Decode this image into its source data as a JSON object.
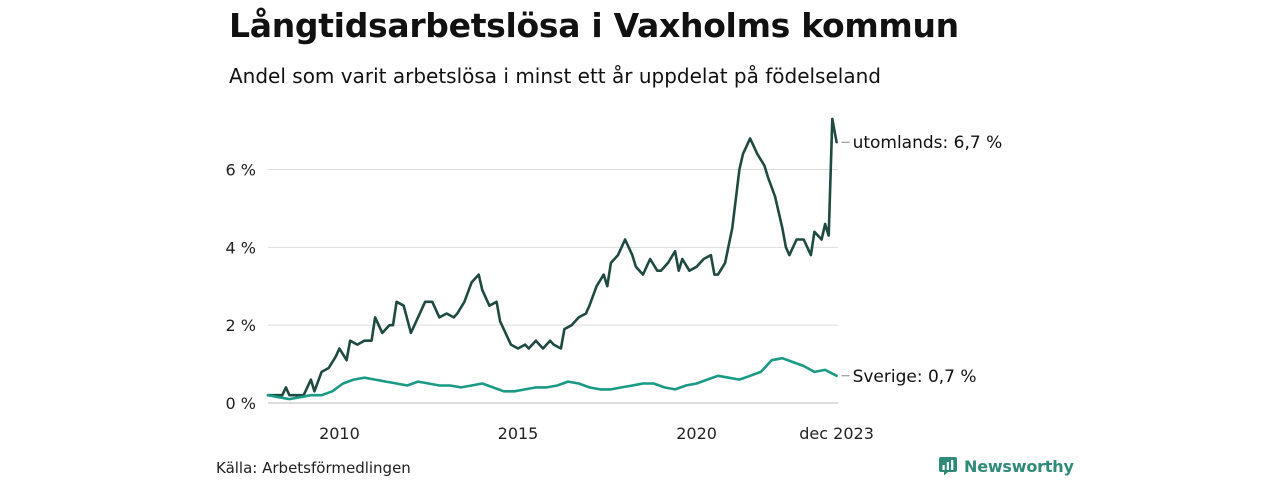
{
  "title": "Långtidsarbetslösa i Vaxholms kommun",
  "subtitle": "Andel som varit arbetslösa i minst ett år uppdelat på födelseland",
  "source": "Källa: Arbetsförmedlingen",
  "brand": {
    "name": "Newsworthy",
    "icon": "newsworthy-logo-icon",
    "color": "#2f8a7a"
  },
  "chart_data": {
    "type": "line",
    "title": "Långtidsarbetslösa i Vaxholms kommun",
    "subtitle": "Andel som varit arbetslösa i minst ett år uppdelat på födelseland",
    "xlabel": "",
    "ylabel": "",
    "xlim": [
      2008.0,
      2023.96
    ],
    "ylim": [
      0,
      7.4
    ],
    "grid": true,
    "yticks": [
      0,
      2,
      4,
      6
    ],
    "ytick_labels": [
      "0 %",
      "2 %",
      "4 %",
      "6 %"
    ],
    "xticks": [
      2010,
      2015,
      2020,
      2023.92
    ],
    "xtick_labels": [
      "2010",
      "2015",
      "2020",
      "dec 2023"
    ],
    "series": [
      {
        "name": "utomlands",
        "label": "utomlands: 6,7 %",
        "color": "#1f4a42",
        "x": [
          2008.0,
          2008.2,
          2008.4,
          2008.5,
          2008.6,
          2008.8,
          2009.0,
          2009.2,
          2009.3,
          2009.5,
          2009.7,
          2009.9,
          2010.0,
          2010.2,
          2010.3,
          2010.5,
          2010.7,
          2010.9,
          2011.0,
          2011.2,
          2011.4,
          2011.5,
          2011.6,
          2011.8,
          2012.0,
          2012.2,
          2012.4,
          2012.5,
          2012.6,
          2012.8,
          2013.0,
          2013.2,
          2013.3,
          2013.5,
          2013.7,
          2013.9,
          2014.0,
          2014.2,
          2014.4,
          2014.5,
          2014.6,
          2014.8,
          2015.0,
          2015.2,
          2015.3,
          2015.5,
          2015.7,
          2015.9,
          2016.0,
          2016.2,
          2016.3,
          2016.5,
          2016.7,
          2016.9,
          2017.0,
          2017.2,
          2017.4,
          2017.5,
          2017.6,
          2017.8,
          2018.0,
          2018.2,
          2018.3,
          2018.5,
          2018.7,
          2018.9,
          2019.0,
          2019.2,
          2019.4,
          2019.5,
          2019.6,
          2019.8,
          2020.0,
          2020.2,
          2020.4,
          2020.5,
          2020.6,
          2020.8,
          2021.0,
          2021.2,
          2021.3,
          2021.5,
          2021.7,
          2021.9,
          2022.0,
          2022.2,
          2022.4,
          2022.5,
          2022.6,
          2022.8,
          2023.0,
          2023.2,
          2023.3,
          2023.5,
          2023.6,
          2023.7,
          2023.8,
          2023.92
        ],
        "values": [
          0.2,
          0.2,
          0.2,
          0.4,
          0.2,
          0.2,
          0.2,
          0.6,
          0.3,
          0.8,
          0.9,
          1.2,
          1.4,
          1.1,
          1.6,
          1.5,
          1.6,
          1.6,
          2.2,
          1.8,
          2.0,
          2.0,
          2.6,
          2.5,
          1.8,
          2.2,
          2.6,
          2.6,
          2.6,
          2.2,
          2.3,
          2.2,
          2.3,
          2.6,
          3.1,
          3.3,
          2.9,
          2.5,
          2.6,
          2.1,
          1.9,
          1.5,
          1.4,
          1.5,
          1.4,
          1.6,
          1.4,
          1.6,
          1.5,
          1.4,
          1.9,
          2.0,
          2.2,
          2.3,
          2.5,
          3.0,
          3.3,
          3.0,
          3.6,
          3.8,
          4.2,
          3.8,
          3.5,
          3.3,
          3.7,
          3.4,
          3.4,
          3.6,
          3.9,
          3.4,
          3.7,
          3.4,
          3.5,
          3.7,
          3.8,
          3.3,
          3.3,
          3.6,
          4.5,
          6.0,
          6.4,
          6.8,
          6.4,
          6.1,
          5.8,
          5.3,
          4.5,
          4.0,
          3.8,
          4.2,
          4.2,
          3.8,
          4.4,
          4.2,
          4.6,
          4.3,
          7.3,
          6.7
        ]
      },
      {
        "name": "Sverige",
        "label": "Sverige: 0,7 %",
        "color": "#1a9a84",
        "x": [
          2008.0,
          2008.3,
          2008.6,
          2008.9,
          2009.2,
          2009.5,
          2009.8,
          2010.1,
          2010.4,
          2010.7,
          2011.0,
          2011.3,
          2011.6,
          2011.9,
          2012.2,
          2012.5,
          2012.8,
          2013.1,
          2013.4,
          2013.7,
          2014.0,
          2014.3,
          2014.6,
          2014.9,
          2015.2,
          2015.5,
          2015.8,
          2016.1,
          2016.4,
          2016.7,
          2017.0,
          2017.3,
          2017.6,
          2017.9,
          2018.2,
          2018.5,
          2018.8,
          2019.1,
          2019.4,
          2019.7,
          2020.0,
          2020.3,
          2020.6,
          2020.9,
          2021.2,
          2021.5,
          2021.8,
          2022.1,
          2022.4,
          2022.7,
          2023.0,
          2023.3,
          2023.6,
          2023.92
        ],
        "values": [
          0.2,
          0.15,
          0.1,
          0.15,
          0.2,
          0.2,
          0.3,
          0.5,
          0.6,
          0.65,
          0.6,
          0.55,
          0.5,
          0.45,
          0.55,
          0.5,
          0.45,
          0.45,
          0.4,
          0.45,
          0.5,
          0.4,
          0.3,
          0.3,
          0.35,
          0.4,
          0.4,
          0.45,
          0.55,
          0.5,
          0.4,
          0.35,
          0.35,
          0.4,
          0.45,
          0.5,
          0.5,
          0.4,
          0.35,
          0.45,
          0.5,
          0.6,
          0.7,
          0.65,
          0.6,
          0.7,
          0.8,
          1.1,
          1.15,
          1.05,
          0.95,
          0.8,
          0.85,
          0.7
        ]
      }
    ]
  }
}
